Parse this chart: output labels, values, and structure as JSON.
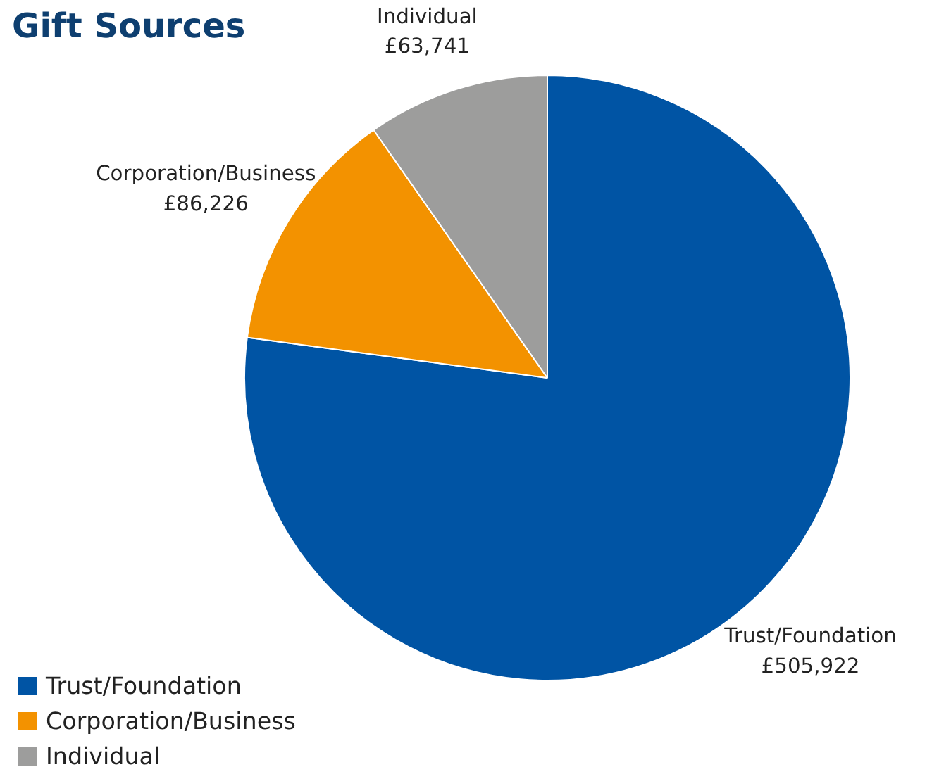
{
  "chart_data": {
    "type": "pie",
    "title": "Gift Sources",
    "categories": [
      "Trust/Foundation",
      "Corporation/Business",
      "Individual"
    ],
    "values": [
      505922,
      86226,
      63741
    ],
    "value_labels": [
      "£505,922",
      "£86,226",
      "£63,741"
    ],
    "colors": [
      "#0054a4",
      "#f39200",
      "#9d9d9c"
    ],
    "legend": "bottom left"
  }
}
